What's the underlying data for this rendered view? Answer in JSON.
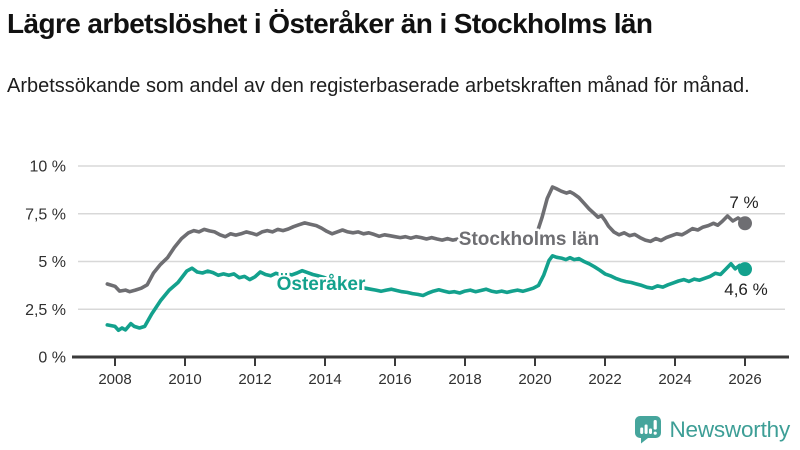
{
  "header": {
    "title": "Lägre arbetslöshet i Österåker än i Stockholms län",
    "subtitle": "Arbetssökande som andel av den registerbaserade arbetskraften månad för månad."
  },
  "chart_data": {
    "type": "line",
    "title": "Lägre arbetslöshet i Österåker än i Stockholms län",
    "xlabel": "",
    "ylabel": "",
    "xlim": [
      2007.75,
      2026.35
    ],
    "ylim": [
      0,
      10
    ],
    "grid": "horizontal",
    "legend_position": "inline-labels",
    "x_axis": {
      "ticks": [
        2008,
        2010,
        2012,
        2014,
        2016,
        2018,
        2020,
        2022,
        2024,
        2026
      ]
    },
    "y_axis": {
      "tick_labels": [
        "0 %",
        "2,5 %",
        "5 %",
        "7,5 %",
        "10 %"
      ],
      "tick_values": [
        0,
        2.5,
        5,
        7.5,
        10
      ]
    },
    "colors": {
      "grid": "#d8d8d8",
      "axis": "#3a3a3a",
      "tick_text": "#303030"
    },
    "series": [
      {
        "name": "Stockholms län",
        "color": "#6e6e72",
        "end_label": "7 %",
        "end_value": 7.0,
        "points": [
          [
            2007.78,
            3.82
          ],
          [
            2008.0,
            3.7
          ],
          [
            2008.13,
            3.45
          ],
          [
            2008.3,
            3.5
          ],
          [
            2008.42,
            3.42
          ],
          [
            2008.58,
            3.5
          ],
          [
            2008.75,
            3.6
          ],
          [
            2008.92,
            3.78
          ],
          [
            2009.1,
            4.4
          ],
          [
            2009.3,
            4.85
          ],
          [
            2009.5,
            5.2
          ],
          [
            2009.7,
            5.75
          ],
          [
            2009.9,
            6.2
          ],
          [
            2010.1,
            6.5
          ],
          [
            2010.25,
            6.62
          ],
          [
            2010.4,
            6.55
          ],
          [
            2010.55,
            6.68
          ],
          [
            2010.7,
            6.6
          ],
          [
            2010.85,
            6.55
          ],
          [
            2011.0,
            6.4
          ],
          [
            2011.15,
            6.3
          ],
          [
            2011.3,
            6.45
          ],
          [
            2011.45,
            6.38
          ],
          [
            2011.6,
            6.45
          ],
          [
            2011.75,
            6.55
          ],
          [
            2011.9,
            6.48
          ],
          [
            2012.05,
            6.4
          ],
          [
            2012.2,
            6.55
          ],
          [
            2012.35,
            6.62
          ],
          [
            2012.5,
            6.55
          ],
          [
            2012.65,
            6.68
          ],
          [
            2012.8,
            6.62
          ],
          [
            2012.95,
            6.7
          ],
          [
            2013.1,
            6.82
          ],
          [
            2013.25,
            6.92
          ],
          [
            2013.42,
            7.02
          ],
          [
            2013.58,
            6.95
          ],
          [
            2013.75,
            6.88
          ],
          [
            2013.9,
            6.75
          ],
          [
            2014.05,
            6.58
          ],
          [
            2014.2,
            6.45
          ],
          [
            2014.35,
            6.55
          ],
          [
            2014.5,
            6.65
          ],
          [
            2014.65,
            6.55
          ],
          [
            2014.8,
            6.5
          ],
          [
            2014.95,
            6.55
          ],
          [
            2015.1,
            6.45
          ],
          [
            2015.25,
            6.5
          ],
          [
            2015.4,
            6.42
          ],
          [
            2015.55,
            6.32
          ],
          [
            2015.7,
            6.4
          ],
          [
            2015.85,
            6.35
          ],
          [
            2016.0,
            6.3
          ],
          [
            2016.15,
            6.25
          ],
          [
            2016.3,
            6.3
          ],
          [
            2016.45,
            6.22
          ],
          [
            2016.6,
            6.3
          ],
          [
            2016.75,
            6.25
          ],
          [
            2016.9,
            6.18
          ],
          [
            2017.05,
            6.25
          ],
          [
            2017.2,
            6.18
          ],
          [
            2017.35,
            6.12
          ],
          [
            2017.5,
            6.2
          ],
          [
            2017.65,
            6.12
          ],
          [
            2017.8,
            6.18
          ],
          [
            2017.95,
            6.1
          ],
          [
            2018.1,
            6.15
          ],
          [
            2018.25,
            6.05
          ],
          [
            2018.4,
            6.12
          ],
          [
            2018.55,
            6.05
          ],
          [
            2018.7,
            6.1
          ],
          [
            2018.85,
            6.15
          ],
          [
            2019.0,
            6.08
          ],
          [
            2019.15,
            6.12
          ],
          [
            2019.3,
            6.08
          ],
          [
            2019.45,
            6.15
          ],
          [
            2019.6,
            6.2
          ],
          [
            2019.75,
            6.25
          ],
          [
            2019.9,
            6.3
          ],
          [
            2020.05,
            6.45
          ],
          [
            2020.2,
            7.3
          ],
          [
            2020.35,
            8.3
          ],
          [
            2020.5,
            8.9
          ],
          [
            2020.6,
            8.82
          ],
          [
            2020.75,
            8.68
          ],
          [
            2020.9,
            8.58
          ],
          [
            2021.0,
            8.65
          ],
          [
            2021.1,
            8.55
          ],
          [
            2021.25,
            8.35
          ],
          [
            2021.4,
            8.05
          ],
          [
            2021.55,
            7.75
          ],
          [
            2021.7,
            7.5
          ],
          [
            2021.8,
            7.32
          ],
          [
            2021.9,
            7.4
          ],
          [
            2022.0,
            7.15
          ],
          [
            2022.1,
            6.85
          ],
          [
            2022.25,
            6.55
          ],
          [
            2022.4,
            6.4
          ],
          [
            2022.55,
            6.5
          ],
          [
            2022.7,
            6.35
          ],
          [
            2022.85,
            6.42
          ],
          [
            2023.0,
            6.25
          ],
          [
            2023.15,
            6.12
          ],
          [
            2023.3,
            6.05
          ],
          [
            2023.45,
            6.2
          ],
          [
            2023.6,
            6.1
          ],
          [
            2023.75,
            6.25
          ],
          [
            2023.9,
            6.35
          ],
          [
            2024.05,
            6.45
          ],
          [
            2024.2,
            6.4
          ],
          [
            2024.35,
            6.55
          ],
          [
            2024.5,
            6.72
          ],
          [
            2024.65,
            6.65
          ],
          [
            2024.8,
            6.8
          ],
          [
            2024.95,
            6.88
          ],
          [
            2025.1,
            7.0
          ],
          [
            2025.22,
            6.9
          ],
          [
            2025.35,
            7.1
          ],
          [
            2025.5,
            7.38
          ],
          [
            2025.65,
            7.12
          ],
          [
            2025.8,
            7.28
          ],
          [
            2025.9,
            7.15
          ],
          [
            2026.0,
            7.0
          ]
        ]
      },
      {
        "name": "Österåker",
        "color": "#13a18d",
        "end_label": "4,6 %",
        "end_value": 4.6,
        "points": [
          [
            2007.78,
            1.68
          ],
          [
            2008.0,
            1.6
          ],
          [
            2008.1,
            1.4
          ],
          [
            2008.2,
            1.52
          ],
          [
            2008.3,
            1.42
          ],
          [
            2008.45,
            1.75
          ],
          [
            2008.55,
            1.6
          ],
          [
            2008.7,
            1.52
          ],
          [
            2008.85,
            1.6
          ],
          [
            2009.05,
            2.25
          ],
          [
            2009.3,
            2.95
          ],
          [
            2009.55,
            3.5
          ],
          [
            2009.8,
            3.9
          ],
          [
            2010.05,
            4.5
          ],
          [
            2010.2,
            4.65
          ],
          [
            2010.35,
            4.45
          ],
          [
            2010.5,
            4.4
          ],
          [
            2010.65,
            4.5
          ],
          [
            2010.8,
            4.42
          ],
          [
            2010.95,
            4.28
          ],
          [
            2011.1,
            4.35
          ],
          [
            2011.25,
            4.28
          ],
          [
            2011.4,
            4.35
          ],
          [
            2011.55,
            4.15
          ],
          [
            2011.7,
            4.22
          ],
          [
            2011.85,
            4.05
          ],
          [
            2012.0,
            4.2
          ],
          [
            2012.15,
            4.45
          ],
          [
            2012.3,
            4.32
          ],
          [
            2012.45,
            4.25
          ],
          [
            2012.6,
            4.38
          ],
          [
            2012.75,
            4.3
          ],
          [
            2012.9,
            4.35
          ],
          [
            2013.05,
            4.3
          ],
          [
            2013.2,
            4.4
          ],
          [
            2013.35,
            4.52
          ],
          [
            2013.5,
            4.42
          ],
          [
            2013.65,
            4.32
          ],
          [
            2013.8,
            4.25
          ],
          [
            2013.95,
            4.18
          ],
          [
            2014.1,
            4.08
          ],
          [
            2014.25,
            4.0
          ],
          [
            2014.4,
            3.95
          ],
          [
            2014.55,
            3.88
          ],
          [
            2014.7,
            3.82
          ],
          [
            2014.85,
            3.75
          ],
          [
            2015.0,
            3.68
          ],
          [
            2015.15,
            3.6
          ],
          [
            2015.3,
            3.55
          ],
          [
            2015.45,
            3.5
          ],
          [
            2015.6,
            3.44
          ],
          [
            2015.75,
            3.5
          ],
          [
            2015.9,
            3.55
          ],
          [
            2016.05,
            3.48
          ],
          [
            2016.2,
            3.42
          ],
          [
            2016.35,
            3.38
          ],
          [
            2016.5,
            3.32
          ],
          [
            2016.65,
            3.28
          ],
          [
            2016.8,
            3.22
          ],
          [
            2016.95,
            3.35
          ],
          [
            2017.1,
            3.45
          ],
          [
            2017.25,
            3.52
          ],
          [
            2017.4,
            3.45
          ],
          [
            2017.55,
            3.38
          ],
          [
            2017.7,
            3.42
          ],
          [
            2017.85,
            3.35
          ],
          [
            2018.0,
            3.45
          ],
          [
            2018.15,
            3.5
          ],
          [
            2018.3,
            3.42
          ],
          [
            2018.45,
            3.48
          ],
          [
            2018.6,
            3.55
          ],
          [
            2018.75,
            3.45
          ],
          [
            2018.9,
            3.4
          ],
          [
            2019.05,
            3.45
          ],
          [
            2019.2,
            3.38
          ],
          [
            2019.35,
            3.45
          ],
          [
            2019.5,
            3.5
          ],
          [
            2019.65,
            3.44
          ],
          [
            2019.8,
            3.52
          ],
          [
            2019.95,
            3.6
          ],
          [
            2020.1,
            3.75
          ],
          [
            2020.25,
            4.3
          ],
          [
            2020.4,
            5.05
          ],
          [
            2020.5,
            5.3
          ],
          [
            2020.62,
            5.22
          ],
          [
            2020.75,
            5.18
          ],
          [
            2020.88,
            5.1
          ],
          [
            2021.0,
            5.2
          ],
          [
            2021.12,
            5.1
          ],
          [
            2021.25,
            5.15
          ],
          [
            2021.4,
            5.0
          ],
          [
            2021.55,
            4.88
          ],
          [
            2021.7,
            4.72
          ],
          [
            2021.85,
            4.55
          ],
          [
            2022.0,
            4.35
          ],
          [
            2022.15,
            4.25
          ],
          [
            2022.3,
            4.12
          ],
          [
            2022.45,
            4.02
          ],
          [
            2022.6,
            3.95
          ],
          [
            2022.75,
            3.9
          ],
          [
            2022.9,
            3.82
          ],
          [
            2023.05,
            3.75
          ],
          [
            2023.2,
            3.65
          ],
          [
            2023.35,
            3.6
          ],
          [
            2023.5,
            3.72
          ],
          [
            2023.65,
            3.66
          ],
          [
            2023.8,
            3.78
          ],
          [
            2023.95,
            3.88
          ],
          [
            2024.1,
            3.98
          ],
          [
            2024.25,
            4.05
          ],
          [
            2024.4,
            3.96
          ],
          [
            2024.55,
            4.08
          ],
          [
            2024.7,
            4.02
          ],
          [
            2024.85,
            4.12
          ],
          [
            2025.0,
            4.22
          ],
          [
            2025.15,
            4.38
          ],
          [
            2025.3,
            4.32
          ],
          [
            2025.45,
            4.6
          ],
          [
            2025.6,
            4.88
          ],
          [
            2025.72,
            4.62
          ],
          [
            2025.85,
            4.8
          ],
          [
            2026.0,
            4.6
          ]
        ]
      }
    ]
  },
  "footer": {
    "brand": "Newsworthy",
    "brand_color": "#3d9e96",
    "brand_icon_color": "#46a59c"
  }
}
